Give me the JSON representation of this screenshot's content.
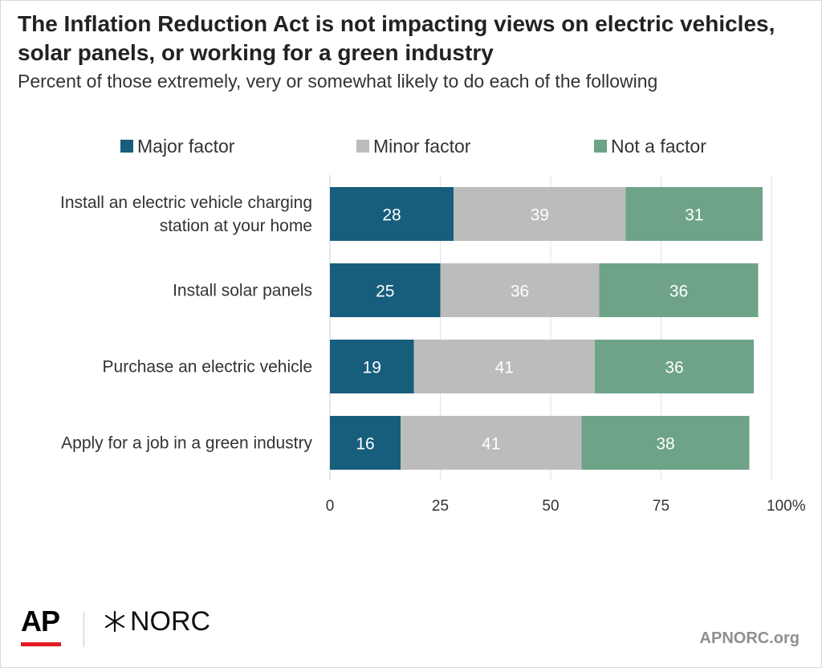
{
  "title": "The Inflation Reduction Act is not impacting views on electric vehicles, solar panels, or working for a green industry",
  "subtitle": "Percent of those extremely, very or somewhat likely to do each of the following",
  "chart_data": {
    "type": "bar",
    "orientation": "horizontal",
    "stacked": true,
    "categories": [
      [
        "Install an electric vehicle charging",
        "station at your home"
      ],
      [
        "Install solar panels"
      ],
      [
        "Purchase an electric vehicle"
      ],
      [
        "Apply for a job in a green industry"
      ]
    ],
    "series": [
      {
        "name": "Major factor",
        "color": "#175d7c",
        "values": [
          28,
          25,
          19,
          16
        ]
      },
      {
        "name": "Minor factor",
        "color": "#bcbcbc",
        "values": [
          39,
          36,
          41,
          41
        ]
      },
      {
        "name": "Not a factor",
        "color": "#6ea387",
        "values": [
          31,
          36,
          36,
          38
        ]
      }
    ],
    "xlim": [
      0,
      100
    ],
    "xticks": [
      "0",
      "25",
      "50",
      "75",
      "100%"
    ],
    "xtick_values": [
      0,
      25,
      50,
      75,
      100
    ],
    "grid": true,
    "legend": "top"
  },
  "footer": {
    "ap_logo": "AP",
    "norc_logo": "NORC",
    "site": "APNORC.org"
  }
}
